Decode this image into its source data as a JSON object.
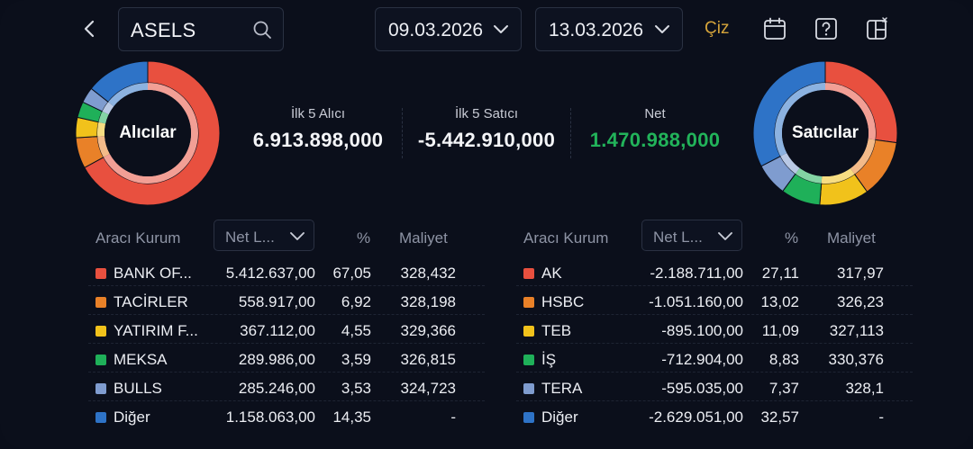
{
  "search": {
    "value": "ASELS"
  },
  "dates": {
    "start": "09.03.2026",
    "end": "13.03.2026"
  },
  "toolbar": {
    "draw_label": "Çiz",
    "icons": [
      "calendar-icon",
      "help-icon",
      "layout-icon"
    ]
  },
  "colors": {
    "red": "#e8503f",
    "orange": "#e98128",
    "yellow": "#f1c21b",
    "green": "#1fb059",
    "lightblue": "#7f9ccf",
    "blue": "#2e73c7",
    "net_green": "#22b35a"
  },
  "buyers": {
    "donut_label": "Alıcılar",
    "summary_label": "İlk 5 Alıcı",
    "summary_value": "6.913.898,000",
    "table": {
      "col_broker": "Aracı Kurum",
      "col_net": "Net L...",
      "col_pct": "%",
      "col_cost": "Maliyet",
      "rows": [
        {
          "name": "BANK OF...",
          "net": "5.412.637,00",
          "pct": "67,05",
          "cost": "328,432",
          "color": "#e8503f"
        },
        {
          "name": "TACİRLER",
          "net": "558.917,00",
          "pct": "6,92",
          "cost": "328,198",
          "color": "#e98128"
        },
        {
          "name": "YATIRIM F...",
          "net": "367.112,00",
          "pct": "4,55",
          "cost": "329,366",
          "color": "#f1c21b"
        },
        {
          "name": "MEKSA",
          "net": "289.986,00",
          "pct": "3,59",
          "cost": "326,815",
          "color": "#1fb059"
        },
        {
          "name": "BULLS",
          "net": "285.246,00",
          "pct": "3,53",
          "cost": "324,723",
          "color": "#7f9ccf"
        },
        {
          "name": "Diğer",
          "net": "1.158.063,00",
          "pct": "14,35",
          "cost": "-",
          "color": "#2e73c7"
        }
      ]
    }
  },
  "sellers": {
    "donut_label": "Satıcılar",
    "summary_label": "İlk 5 Satıcı",
    "summary_value": "-5.442.910,000",
    "table": {
      "col_broker": "Aracı Kurum",
      "col_net": "Net L...",
      "col_pct": "%",
      "col_cost": "Maliyet",
      "rows": [
        {
          "name": "AK",
          "net": "-2.188.711,00",
          "pct": "27,11",
          "cost": "317,97",
          "color": "#e8503f"
        },
        {
          "name": "HSBC",
          "net": "-1.051.160,00",
          "pct": "13,02",
          "cost": "326,23",
          "color": "#e98128"
        },
        {
          "name": "TEB",
          "net": "-895.100,00",
          "pct": "11,09",
          "cost": "327,113",
          "color": "#f1c21b"
        },
        {
          "name": "İŞ",
          "net": "-712.904,00",
          "pct": "8,83",
          "cost": "330,376",
          "color": "#1fb059"
        },
        {
          "name": "TERA",
          "net": "-595.035,00",
          "pct": "7,37",
          "cost": "328,1",
          "color": "#7f9ccf"
        },
        {
          "name": "Diğer",
          "net": "-2.629.051,00",
          "pct": "32,57",
          "cost": "-",
          "color": "#2e73c7"
        }
      ]
    }
  },
  "net": {
    "label": "Net",
    "value": "1.470.988,000"
  }
}
